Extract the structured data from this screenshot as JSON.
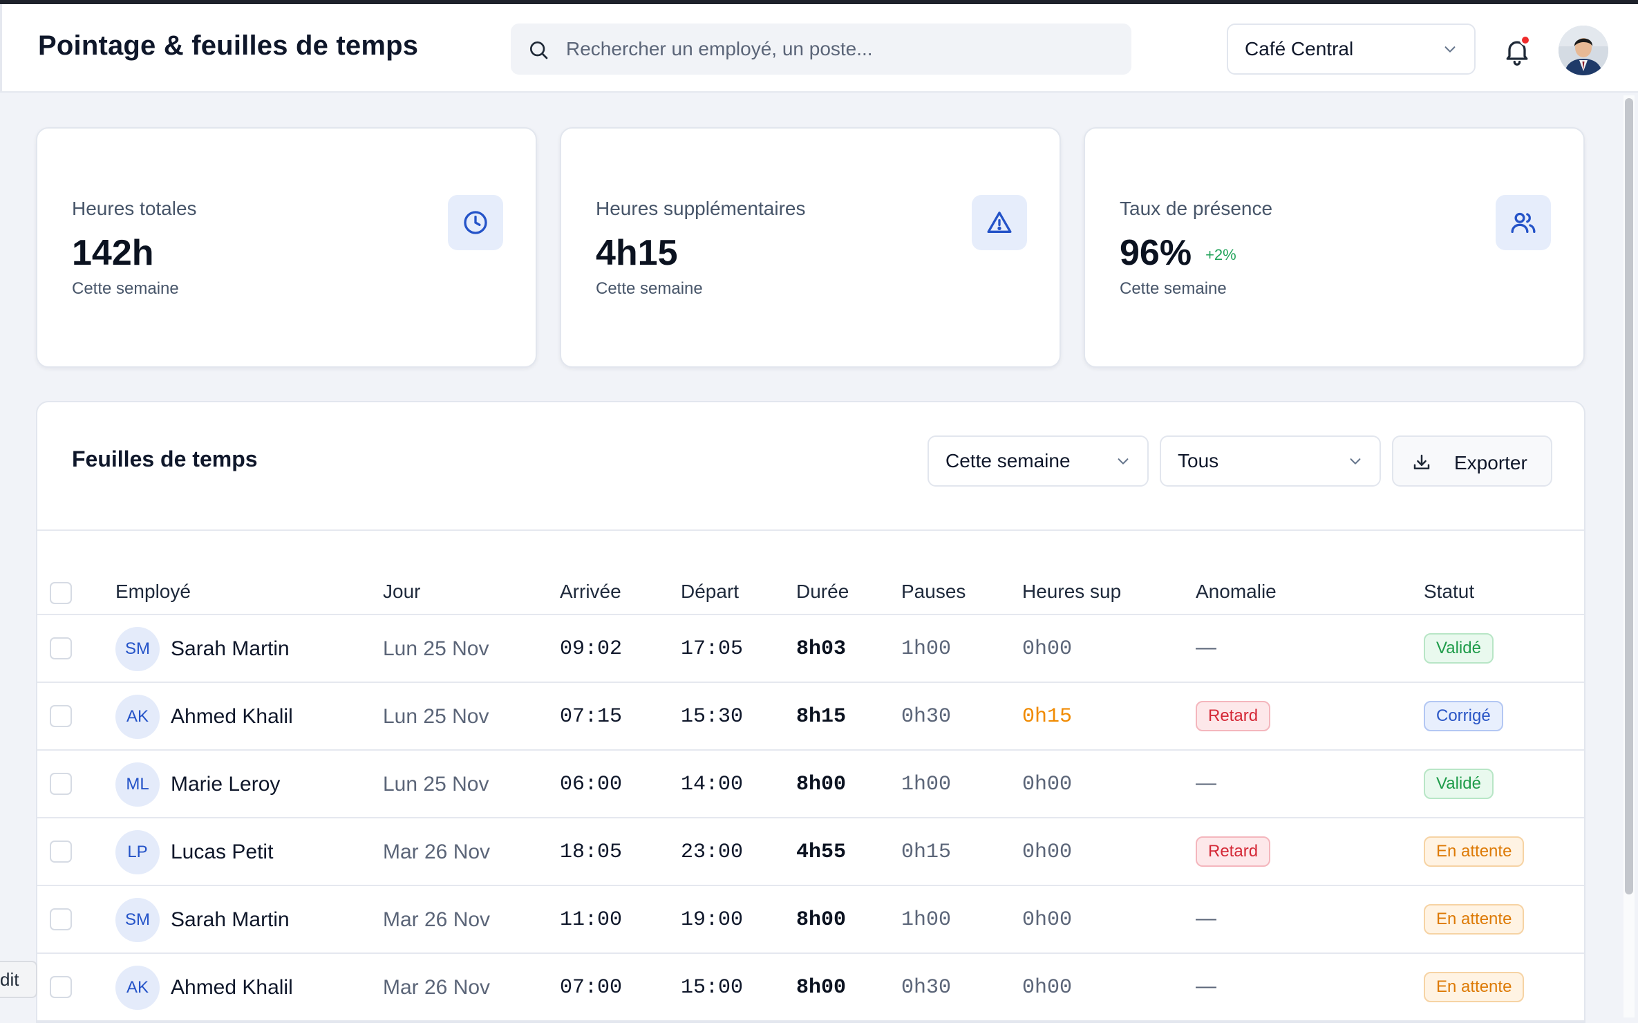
{
  "header": {
    "title": "Pointage & feuilles de temps",
    "search_placeholder": "Rechercher un employé, un poste...",
    "location": "Café Central"
  },
  "stats": [
    {
      "label": "Heures totales",
      "value": "142h",
      "delta": "",
      "sub": "Cette semaine",
      "icon": "clock-icon"
    },
    {
      "label": "Heures supplémentaires",
      "value": "4h15",
      "delta": "",
      "sub": "Cette semaine",
      "icon": "alert-triangle-icon"
    },
    {
      "label": "Taux de présence",
      "value": "96%",
      "delta": "+2%",
      "sub": "Cette semaine",
      "icon": "users-icon"
    }
  ],
  "timesheets": {
    "title": "Feuilles de temps",
    "period_filter": "Cette semaine",
    "status_filter": "Tous",
    "export_label": "Exporter",
    "columns": [
      "Employé",
      "Jour",
      "Arrivée",
      "Départ",
      "Durée",
      "Pauses",
      "Heures sup",
      "Anomalie",
      "Statut"
    ],
    "rows": [
      {
        "initials": "SM",
        "name": "Sarah Martin",
        "day": "Lun 25 Nov",
        "in": "09:02",
        "out": "17:05",
        "duration": "8h03",
        "pauses": "1h00",
        "overtime": "0h00",
        "anomaly": "—",
        "status": "Validé"
      },
      {
        "initials": "AK",
        "name": "Ahmed Khalil",
        "day": "Lun 25 Nov",
        "in": "07:15",
        "out": "15:30",
        "duration": "8h15",
        "pauses": "0h30",
        "overtime": "0h15",
        "anomaly": "Retard",
        "status": "Corrigé"
      },
      {
        "initials": "ML",
        "name": "Marie Leroy",
        "day": "Lun 25 Nov",
        "in": "06:00",
        "out": "14:00",
        "duration": "8h00",
        "pauses": "1h00",
        "overtime": "0h00",
        "anomaly": "—",
        "status": "Validé"
      },
      {
        "initials": "LP",
        "name": "Lucas Petit",
        "day": "Mar 26 Nov",
        "in": "18:05",
        "out": "23:00",
        "duration": "4h55",
        "pauses": "0h15",
        "overtime": "0h00",
        "anomaly": "Retard",
        "status": "En attente"
      },
      {
        "initials": "SM",
        "name": "Sarah Martin",
        "day": "Mar 26 Nov",
        "in": "11:00",
        "out": "19:00",
        "duration": "8h00",
        "pauses": "1h00",
        "overtime": "0h00",
        "anomaly": "—",
        "status": "En attente"
      },
      {
        "initials": "AK",
        "name": "Ahmed Khalil",
        "day": "Mar 26 Nov",
        "in": "07:00",
        "out": "15:00",
        "duration": "8h00",
        "pauses": "0h30",
        "overtime": "0h00",
        "anomaly": "—",
        "status": "En attente"
      }
    ]
  },
  "edit_tab_label": "dit",
  "colors": {
    "accent": "#2453c8",
    "danger": "#d42836",
    "success": "#1f9c4a",
    "warning": "#dd7a06"
  }
}
